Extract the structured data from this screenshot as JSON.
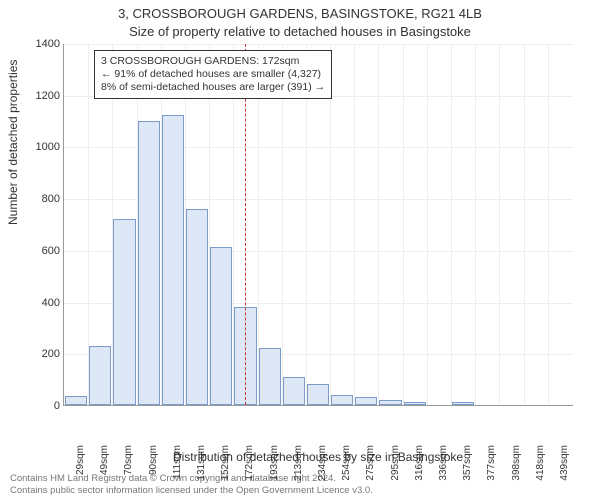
{
  "title_line1": "3, CROSSBOROUGH GARDENS, BASINGSTOKE, RG21 4LB",
  "title_line2": "Size of property relative to detached houses in Basingstoke",
  "y_axis_label": "Number of detached properties",
  "x_axis_label": "Distribution of detached houses by size in Basingstoke",
  "chart": {
    "type": "histogram",
    "bar_fill": "#dde7f5",
    "bar_stroke": "#7a9cc6",
    "grid_color": "#eeeeee",
    "background_color": "#ffffff",
    "ref_line_color": "#cc3333",
    "ref_line_value": 172,
    "ylim": [
      0,
      1400
    ],
    "ytick_step": 200,
    "yticks": [
      0,
      200,
      400,
      600,
      800,
      1000,
      1200,
      1400
    ],
    "x_labels": [
      "29sqm",
      "49sqm",
      "70sqm",
      "90sqm",
      "111sqm",
      "131sqm",
      "152sqm",
      "172sqm",
      "193sqm",
      "213sqm",
      "234sqm",
      "254sqm",
      "275sqm",
      "295sqm",
      "316sqm",
      "336sqm",
      "357sqm",
      "377sqm",
      "398sqm",
      "418sqm",
      "439sqm"
    ],
    "values": [
      35,
      230,
      720,
      1100,
      1120,
      760,
      610,
      380,
      220,
      110,
      80,
      40,
      30,
      20,
      12,
      0,
      10,
      0,
      0,
      0,
      0
    ]
  },
  "annotation": {
    "line1": "3 CROSSBOROUGH GARDENS: 172sqm",
    "line2": "← 91% of detached houses are smaller (4,327)",
    "line3": "8% of semi-detached houses are larger (391) →"
  },
  "footer_line1": "Contains HM Land Registry data © Crown copyright and database right 2024.",
  "footer_line2": "Contains public sector information licensed under the Open Government Licence v3.0."
}
